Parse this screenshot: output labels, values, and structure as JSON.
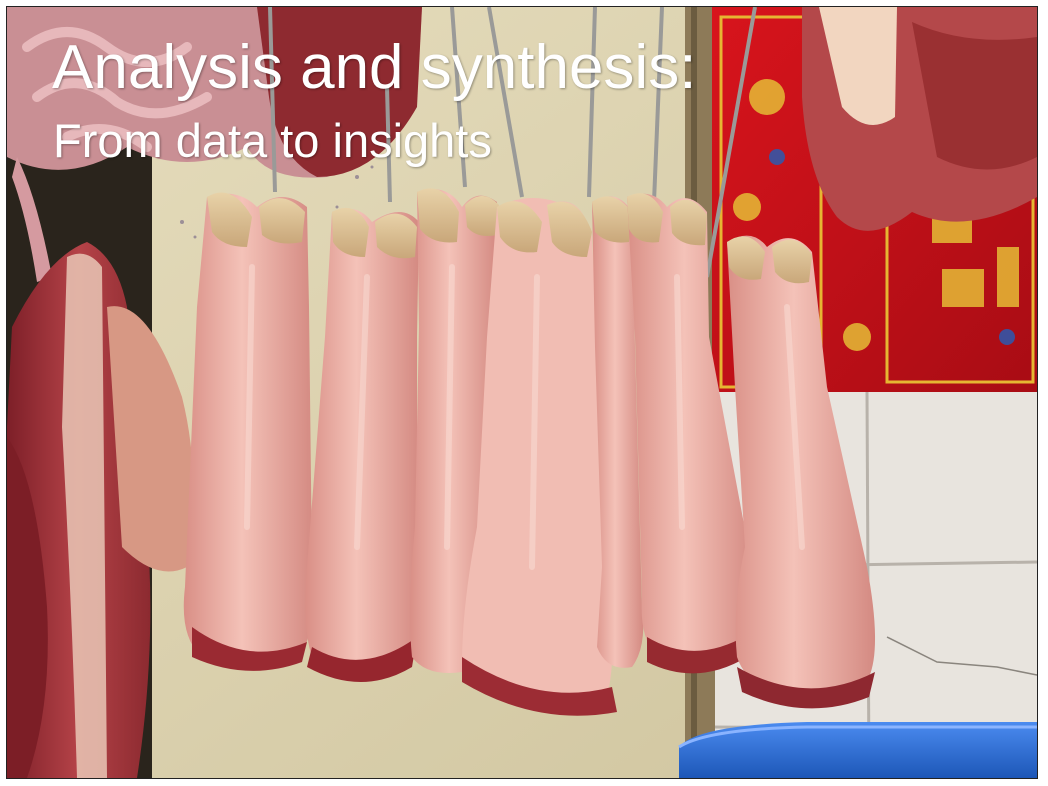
{
  "slide": {
    "title": "Analysis and synthesis:",
    "subtitle": "From data to insights"
  },
  "colors": {
    "background": "#ffffff",
    "title_text": "#ffffff",
    "wall": "#d8cfae",
    "pig_trotter_skin": "#eab0a6",
    "red_poster": "#c8101a",
    "poster_gold": "#e0b030",
    "tiles": "#e6e2dc",
    "blue_basin": "#2f6fd6",
    "raw_meat": "#a4323a"
  },
  "icons": [
    "butcher-stall-photo"
  ]
}
